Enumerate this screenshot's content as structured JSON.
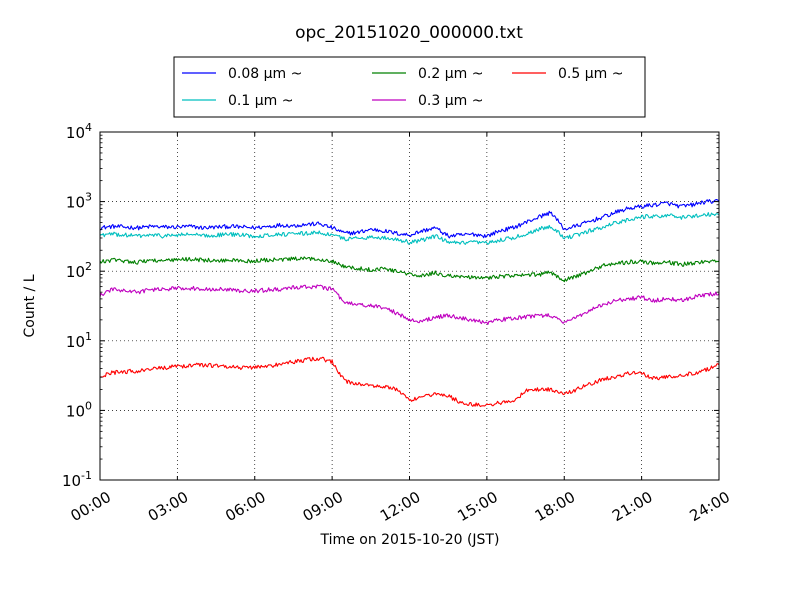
{
  "chart_data": {
    "type": "line",
    "title": "opc_20151020_000000.txt",
    "xlabel": "Time on 2015-10-20 (JST)",
    "ylabel": "Count / L",
    "yscale": "log",
    "ylim": [
      0.1,
      10000
    ],
    "xlim": [
      "00:00",
      "24:00"
    ],
    "x_tick_labels": [
      "00:00",
      "03:00",
      "06:00",
      "09:00",
      "12:00",
      "15:00",
      "18:00",
      "21:00",
      "24:00"
    ],
    "y_tick_labels": [
      {
        "base": "10",
        "exp": "-1"
      },
      {
        "base": "10",
        "exp": "0"
      },
      {
        "base": "10",
        "exp": "1"
      },
      {
        "base": "10",
        "exp": "2"
      },
      {
        "base": "10",
        "exp": "3"
      },
      {
        "base": "10",
        "exp": "4"
      }
    ],
    "grid": true,
    "legend_position": "top",
    "series": [
      {
        "name": "0.08 μm ~",
        "color": "#0000ff",
        "values": [
          [
            "00:00",
            420
          ],
          [
            "00:30",
            440
          ],
          [
            "01:00",
            430
          ],
          [
            "01:30",
            420
          ],
          [
            "02:00",
            440
          ],
          [
            "02:30",
            430
          ],
          [
            "03:00",
            430
          ],
          [
            "03:30",
            440
          ],
          [
            "04:00",
            420
          ],
          [
            "04:30",
            430
          ],
          [
            "05:00",
            440
          ],
          [
            "05:30",
            430
          ],
          [
            "06:00",
            420
          ],
          [
            "06:30",
            440
          ],
          [
            "07:00",
            460
          ],
          [
            "07:30",
            450
          ],
          [
            "08:00",
            470
          ],
          [
            "08:30",
            480
          ],
          [
            "09:00",
            420
          ],
          [
            "09:30",
            350
          ],
          [
            "10:00",
            360
          ],
          [
            "10:30",
            400
          ],
          [
            "11:00",
            380
          ],
          [
            "11:30",
            350
          ],
          [
            "12:00",
            330
          ],
          [
            "12:30",
            380
          ],
          [
            "13:00",
            420
          ],
          [
            "13:30",
            320
          ],
          [
            "14:00",
            330
          ],
          [
            "14:30",
            340
          ],
          [
            "15:00",
            320
          ],
          [
            "15:30",
            380
          ],
          [
            "16:00",
            420
          ],
          [
            "16:30",
            500
          ],
          [
            "17:00",
            600
          ],
          [
            "17:30",
            700
          ],
          [
            "18:00",
            400
          ],
          [
            "18:30",
            450
          ],
          [
            "19:00",
            520
          ],
          [
            "19:30",
            600
          ],
          [
            "20:00",
            700
          ],
          [
            "20:30",
            800
          ],
          [
            "21:00",
            850
          ],
          [
            "21:30",
            900
          ],
          [
            "22:00",
            950
          ],
          [
            "22:30",
            850
          ],
          [
            "23:00",
            900
          ],
          [
            "23:30",
            1000
          ],
          [
            "24:00",
            1000
          ]
        ]
      },
      {
        "name": "0.1 μm ~",
        "color": "#00bfbf",
        "values": [
          [
            "00:00",
            330
          ],
          [
            "00:30",
            340
          ],
          [
            "01:00",
            330
          ],
          [
            "01:30",
            320
          ],
          [
            "02:00",
            330
          ],
          [
            "02:30",
            320
          ],
          [
            "03:00",
            330
          ],
          [
            "03:30",
            340
          ],
          [
            "04:00",
            320
          ],
          [
            "04:30",
            330
          ],
          [
            "05:00",
            340
          ],
          [
            "05:30",
            330
          ],
          [
            "06:00",
            320
          ],
          [
            "06:30",
            330
          ],
          [
            "07:00",
            340
          ],
          [
            "07:30",
            340
          ],
          [
            "08:00",
            350
          ],
          [
            "08:30",
            360
          ],
          [
            "09:00",
            330
          ],
          [
            "09:30",
            290
          ],
          [
            "10:00",
            300
          ],
          [
            "10:30",
            310
          ],
          [
            "11:00",
            300
          ],
          [
            "11:30",
            290
          ],
          [
            "12:00",
            260
          ],
          [
            "12:30",
            280
          ],
          [
            "13:00",
            320
          ],
          [
            "13:30",
            260
          ],
          [
            "14:00",
            250
          ],
          [
            "14:30",
            260
          ],
          [
            "15:00",
            250
          ],
          [
            "15:30",
            280
          ],
          [
            "16:00",
            300
          ],
          [
            "16:30",
            340
          ],
          [
            "17:00",
            400
          ],
          [
            "17:30",
            450
          ],
          [
            "18:00",
            300
          ],
          [
            "18:30",
            330
          ],
          [
            "19:00",
            380
          ],
          [
            "19:30",
            430
          ],
          [
            "20:00",
            500
          ],
          [
            "20:30",
            550
          ],
          [
            "21:00",
            600
          ],
          [
            "21:30",
            620
          ],
          [
            "22:00",
            640
          ],
          [
            "22:30",
            580
          ],
          [
            "23:00",
            620
          ],
          [
            "23:30",
            660
          ],
          [
            "24:00",
            650
          ]
        ]
      },
      {
        "name": "0.2 μm ~",
        "color": "#008000",
        "values": [
          [
            "00:00",
            135
          ],
          [
            "00:30",
            145
          ],
          [
            "01:00",
            140
          ],
          [
            "01:30",
            135
          ],
          [
            "02:00",
            145
          ],
          [
            "02:30",
            140
          ],
          [
            "03:00",
            145
          ],
          [
            "03:30",
            150
          ],
          [
            "04:00",
            145
          ],
          [
            "04:30",
            140
          ],
          [
            "05:00",
            145
          ],
          [
            "05:30",
            140
          ],
          [
            "06:00",
            140
          ],
          [
            "06:30",
            145
          ],
          [
            "07:00",
            145
          ],
          [
            "07:30",
            150
          ],
          [
            "08:00",
            150
          ],
          [
            "08:30",
            150
          ],
          [
            "09:00",
            140
          ],
          [
            "09:30",
            115
          ],
          [
            "10:00",
            110
          ],
          [
            "10:30",
            105
          ],
          [
            "11:00",
            110
          ],
          [
            "11:30",
            100
          ],
          [
            "12:00",
            90
          ],
          [
            "12:30",
            85
          ],
          [
            "13:00",
            95
          ],
          [
            "13:30",
            85
          ],
          [
            "14:00",
            85
          ],
          [
            "14:30",
            80
          ],
          [
            "15:00",
            80
          ],
          [
            "15:30",
            85
          ],
          [
            "16:00",
            85
          ],
          [
            "16:30",
            88
          ],
          [
            "17:00",
            90
          ],
          [
            "17:30",
            95
          ],
          [
            "18:00",
            75
          ],
          [
            "18:30",
            85
          ],
          [
            "19:00",
            100
          ],
          [
            "19:30",
            120
          ],
          [
            "20:00",
            130
          ],
          [
            "20:30",
            135
          ],
          [
            "21:00",
            140
          ],
          [
            "21:30",
            130
          ],
          [
            "22:00",
            135
          ],
          [
            "22:30",
            125
          ],
          [
            "23:00",
            130
          ],
          [
            "23:30",
            140
          ],
          [
            "24:00",
            140
          ]
        ]
      },
      {
        "name": "0.3 μm ~",
        "color": "#bf00bf",
        "values": [
          [
            "00:00",
            45
          ],
          [
            "00:30",
            55
          ],
          [
            "01:00",
            52
          ],
          [
            "01:30",
            50
          ],
          [
            "02:00",
            55
          ],
          [
            "02:30",
            54
          ],
          [
            "03:00",
            58
          ],
          [
            "03:30",
            57
          ],
          [
            "04:00",
            56
          ],
          [
            "04:30",
            55
          ],
          [
            "05:00",
            54
          ],
          [
            "05:30",
            52
          ],
          [
            "06:00",
            52
          ],
          [
            "06:30",
            54
          ],
          [
            "07:00",
            55
          ],
          [
            "07:30",
            58
          ],
          [
            "08:00",
            60
          ],
          [
            "08:30",
            60
          ],
          [
            "09:00",
            55
          ],
          [
            "09:30",
            35
          ],
          [
            "10:00",
            33
          ],
          [
            "10:30",
            32
          ],
          [
            "11:00",
            30
          ],
          [
            "11:30",
            25
          ],
          [
            "12:00",
            20
          ],
          [
            "12:30",
            19
          ],
          [
            "13:00",
            22
          ],
          [
            "13:30",
            23
          ],
          [
            "14:00",
            21
          ],
          [
            "14:30",
            20
          ],
          [
            "15:00",
            18
          ],
          [
            "15:30",
            20
          ],
          [
            "16:00",
            21
          ],
          [
            "16:30",
            22
          ],
          [
            "17:00",
            23
          ],
          [
            "17:30",
            23
          ],
          [
            "18:00",
            18
          ],
          [
            "18:30",
            22
          ],
          [
            "19:00",
            28
          ],
          [
            "19:30",
            33
          ],
          [
            "20:00",
            38
          ],
          [
            "20:30",
            40
          ],
          [
            "21:00",
            42
          ],
          [
            "21:30",
            38
          ],
          [
            "22:00",
            40
          ],
          [
            "22:30",
            38
          ],
          [
            "23:00",
            42
          ],
          [
            "23:30",
            46
          ],
          [
            "24:00",
            48
          ]
        ]
      },
      {
        "name": "0.5 μm ~",
        "color": "#ff0000",
        "values": [
          [
            "00:00",
            3.0
          ],
          [
            "00:30",
            3.5
          ],
          [
            "01:00",
            3.6
          ],
          [
            "01:30",
            3.7
          ],
          [
            "02:00",
            3.9
          ],
          [
            "02:30",
            4.1
          ],
          [
            "03:00",
            4.3
          ],
          [
            "03:30",
            4.4
          ],
          [
            "04:00",
            4.5
          ],
          [
            "04:30",
            4.4
          ],
          [
            "05:00",
            4.3
          ],
          [
            "05:30",
            4.1
          ],
          [
            "06:00",
            4.2
          ],
          [
            "06:30",
            4.3
          ],
          [
            "07:00",
            4.6
          ],
          [
            "07:30",
            5.0
          ],
          [
            "08:00",
            5.3
          ],
          [
            "08:30",
            5.6
          ],
          [
            "09:00",
            5.0
          ],
          [
            "09:30",
            2.6
          ],
          [
            "10:00",
            2.4
          ],
          [
            "10:30",
            2.3
          ],
          [
            "11:00",
            2.2
          ],
          [
            "11:30",
            2.0
          ],
          [
            "12:00",
            1.4
          ],
          [
            "12:30",
            1.5
          ],
          [
            "13:00",
            1.8
          ],
          [
            "13:30",
            1.6
          ],
          [
            "14:00",
            1.3
          ],
          [
            "14:30",
            1.2
          ],
          [
            "15:00",
            1.2
          ],
          [
            "15:30",
            1.3
          ],
          [
            "16:00",
            1.3
          ],
          [
            "16:30",
            1.9
          ],
          [
            "17:00",
            2.0
          ],
          [
            "17:30",
            2.0
          ],
          [
            "18:00",
            1.7
          ],
          [
            "18:30",
            2.0
          ],
          [
            "19:00",
            2.4
          ],
          [
            "19:30",
            2.8
          ],
          [
            "20:00",
            3.1
          ],
          [
            "20:30",
            3.4
          ],
          [
            "21:00",
            3.4
          ],
          [
            "21:30",
            2.9
          ],
          [
            "22:00",
            3.0
          ],
          [
            "22:30",
            3.2
          ],
          [
            "23:00",
            3.4
          ],
          [
            "23:30",
            3.8
          ],
          [
            "24:00",
            4.5
          ]
        ]
      }
    ]
  }
}
